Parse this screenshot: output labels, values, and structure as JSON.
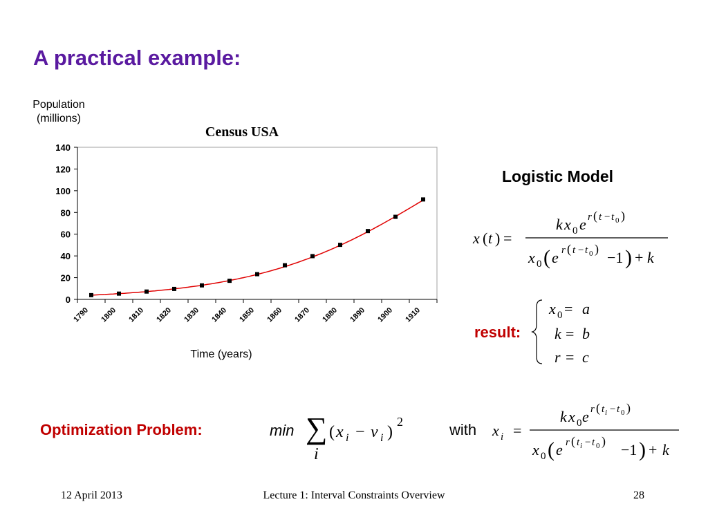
{
  "slide": {
    "title": "A practical example:",
    "footer_date": "12 April 2013",
    "footer_title": "Lecture 1: Interval Constraints Overview",
    "page_number": "28"
  },
  "chart_labels": {
    "y_axis_line1": "Population",
    "y_axis_line2": "(millions)",
    "x_axis": "Time (years)"
  },
  "chart_data": {
    "type": "line",
    "title": "Census USA",
    "xlabel": "Time (years)",
    "ylabel": "Population (millions)",
    "categories": [
      "1790",
      "1800",
      "1810",
      "1820",
      "1830",
      "1840",
      "1850",
      "1860",
      "1870",
      "1880",
      "1890",
      "1900",
      "1910"
    ],
    "y_ticks": [
      0,
      20,
      40,
      60,
      80,
      100,
      120,
      140
    ],
    "ylim": [
      0,
      140
    ],
    "series": [
      {
        "values": [
          3.9,
          5.3,
          7.2,
          9.6,
          12.9,
          17.1,
          23.2,
          31.4,
          39.8,
          50.2,
          62.9,
          76.0,
          92.0
        ],
        "color": "#000000",
        "marker": "square"
      },
      {
        "fit": "logistic",
        "color": "#e00000"
      }
    ],
    "grid": false
  },
  "model": {
    "title": "Logistic Model",
    "result_label": "result:",
    "x0_value": "a",
    "k_value": "b",
    "r_value": "c"
  },
  "optimization": {
    "label": "Optimization Problem:",
    "min_label": "min",
    "with_label": "with"
  }
}
